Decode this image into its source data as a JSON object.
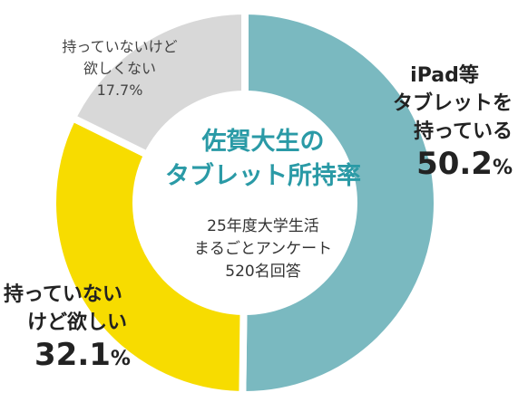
{
  "chart_data": {
    "type": "pie",
    "title": "佐賀大生のタブレット所持率",
    "title_lines": [
      "佐賀大生の",
      "タブレット所持率"
    ],
    "subtitle_lines": [
      "25年度大学生活",
      "まるごとアンケート",
      "520名回答"
    ],
    "slices": [
      {
        "label": "iPad等タブレットを持っている",
        "label_lines": [
          "iPad等",
          "タブレットを",
          "持っている"
        ],
        "value": 50.2,
        "value_text": "50.2",
        "unit": "%",
        "color": "#7ab9c0"
      },
      {
        "label": "持っていないけど欲しい",
        "label_lines": [
          "持っていない",
          "けど欲しい"
        ],
        "value": 32.1,
        "value_text": "32.1",
        "unit": "%",
        "color": "#f7dc00"
      },
      {
        "label": "持っていないけど欲しくない",
        "label_lines": [
          "持っていないけど",
          "欲しくない"
        ],
        "value": 17.7,
        "value_text": "17.7%",
        "unit": "%",
        "color": "#d8d8d8"
      }
    ],
    "donut": true
  }
}
